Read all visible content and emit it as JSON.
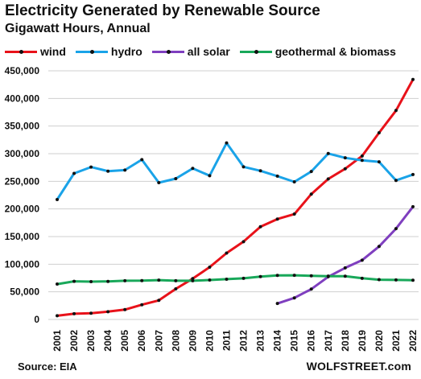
{
  "chart_data": {
    "type": "line",
    "title": "Electricity Generated by Renewable Source",
    "subtitle": "Gigawatt Hours, Annual",
    "source": "Source: EIA",
    "brand": "WOLFSTREET.com",
    "ylim": [
      0,
      450000
    ],
    "yticks": [
      0,
      50000,
      100000,
      150000,
      200000,
      250000,
      300000,
      350000,
      400000,
      450000
    ],
    "ytick_labels": [
      "0",
      "50,000",
      "100,000",
      "150,000",
      "200,000",
      "250,000",
      "300,000",
      "350,000",
      "400,000",
      "450,000"
    ],
    "x": [
      "2001",
      "2002",
      "2003",
      "2004",
      "2005",
      "2006",
      "2007",
      "2008",
      "2009",
      "2010",
      "2011",
      "2012",
      "2013",
      "2014",
      "2015",
      "2016",
      "2017",
      "2018",
      "2019",
      "2020",
      "2021",
      "2022"
    ],
    "grid": true,
    "legend_position": "top",
    "series": [
      {
        "name": "wind",
        "color": "#e8121a",
        "values": [
          6700,
          10400,
          11200,
          14100,
          17800,
          26600,
          34500,
          55400,
          73900,
          94700,
          120200,
          140800,
          167800,
          181700,
          190700,
          226900,
          254300,
          272700,
          295900,
          337900,
          378200,
          434300
        ]
      },
      {
        "name": "hydro",
        "color": "#1aa3e8",
        "values": [
          217000,
          264300,
          275800,
          268400,
          270300,
          289200,
          247500,
          254800,
          273400,
          260200,
          319400,
          276200,
          269000,
          259400,
          249000,
          267800,
          300300,
          292500,
          287900,
          285300,
          251600,
          262300
        ]
      },
      {
        "name": "all solar",
        "color": "#7f3fbf",
        "values": [
          null,
          null,
          null,
          null,
          null,
          null,
          null,
          null,
          null,
          null,
          null,
          null,
          null,
          28900,
          39000,
          54900,
          77300,
          93400,
          107300,
          132100,
          164400,
          204100
        ]
      },
      {
        "name": "geothermal & biomass",
        "color": "#19a85a",
        "values": [
          64000,
          69000,
          68500,
          68900,
          70000,
          70200,
          71200,
          70100,
          70000,
          71400,
          72900,
          74400,
          77500,
          79800,
          80000,
          79000,
          78400,
          78200,
          74500,
          72000,
          71500,
          71000
        ]
      }
    ]
  }
}
